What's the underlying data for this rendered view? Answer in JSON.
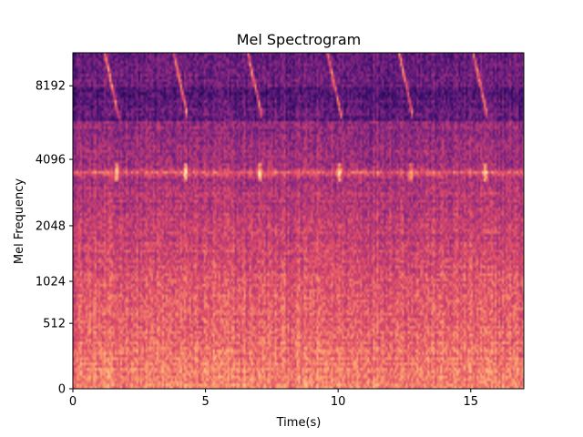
{
  "chart_data": {
    "type": "heatmap",
    "title": "Mel Spectrogram",
    "xlabel": "Time(s)",
    "ylabel": "Mel Frequency",
    "xlim": [
      0,
      17
    ],
    "x_ticks": [
      0,
      5,
      10,
      15
    ],
    "y_ticks": [
      "0",
      "512",
      "1024",
      "2048",
      "4096",
      "8192"
    ],
    "y_scale": "mel",
    "colormap": [
      "#000004",
      "#3b0f70",
      "#8c2981",
      "#de4968",
      "#fe9f6d",
      "#fcfdbf"
    ],
    "features": {
      "constant_band_hz": 3600,
      "chirp_onsets_s": [
        1.2,
        3.8,
        6.6,
        9.6,
        12.3,
        15.1
      ],
      "chirp_hz_range": [
        6000,
        11000
      ]
    }
  }
}
